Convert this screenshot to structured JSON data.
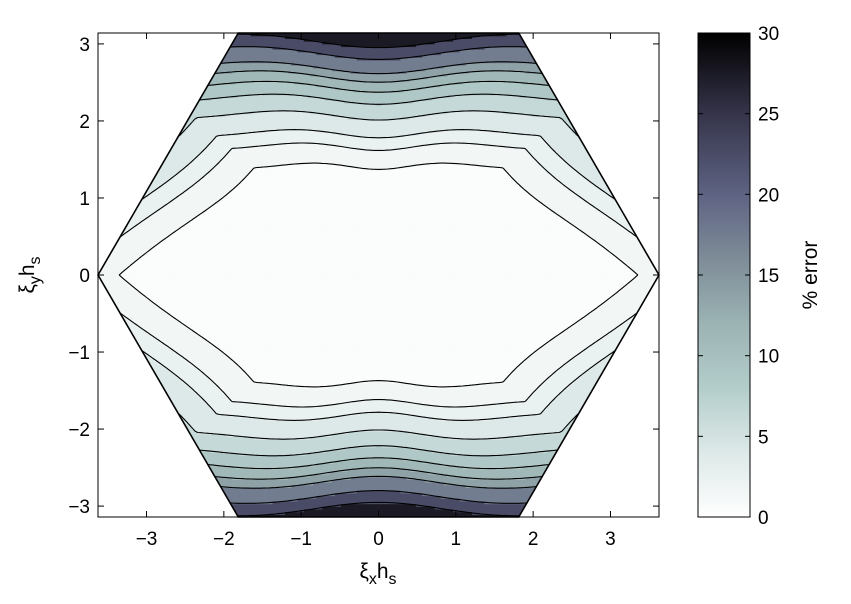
{
  "chart_data": {
    "type": "contour",
    "title": "",
    "xlabel": "ξ_x h_s",
    "ylabel": "ξ_y h_s",
    "xlabel_parts": {
      "main": "ξ",
      "sub1": "x",
      "mid": "h",
      "sub2": "s"
    },
    "ylabel_parts": {
      "main": "ξ",
      "sub1": "y",
      "mid": "h",
      "sub2": "s"
    },
    "xlim": [
      -3.6276,
      3.6276
    ],
    "ylim": [
      -3.1416,
      3.1416
    ],
    "xticks": [
      -3,
      -2,
      -1,
      0,
      1,
      2,
      3
    ],
    "xtick_labels": [
      "−3",
      "−2",
      "−1",
      "0",
      "1",
      "2",
      "3"
    ],
    "yticks": [
      -3,
      -2,
      -1,
      0,
      1,
      2,
      3
    ],
    "ytick_labels": [
      "−3",
      "−2",
      "−1",
      "0",
      "1",
      "2",
      "3"
    ],
    "domain_shape": "hexagon",
    "hexagon_vertices": [
      [
        3.6276,
        0
      ],
      [
        1.8138,
        3.1416
      ],
      [
        -1.8138,
        3.1416
      ],
      [
        -3.6276,
        0
      ],
      [
        -1.8138,
        -3.1416
      ],
      [
        1.8138,
        -3.1416
      ]
    ],
    "contour_levels": [
      1,
      2,
      3,
      5,
      7.5,
      10,
      12.5,
      15,
      20,
      25
    ],
    "max_error": 30,
    "colorbar": {
      "label": "% error",
      "range": [
        0,
        30
      ],
      "ticks": [
        0,
        5,
        10,
        15,
        20,
        25,
        30
      ],
      "tick_labels": [
        "0",
        "5",
        "10",
        "15",
        "20",
        "25",
        "30"
      ],
      "colormap_stops": [
        {
          "value": 0,
          "color": "#ffffff"
        },
        {
          "value": 4,
          "color": "#dde9e8"
        },
        {
          "value": 8,
          "color": "#b3cdcb"
        },
        {
          "value": 12,
          "color": "#9bb3b3"
        },
        {
          "value": 16,
          "color": "#7e8c98"
        },
        {
          "value": 20,
          "color": "#5e6383"
        },
        {
          "value": 25,
          "color": "#35344a"
        },
        {
          "value": 30,
          "color": "#000000"
        }
      ]
    },
    "grid": false,
    "legend": "none"
  }
}
